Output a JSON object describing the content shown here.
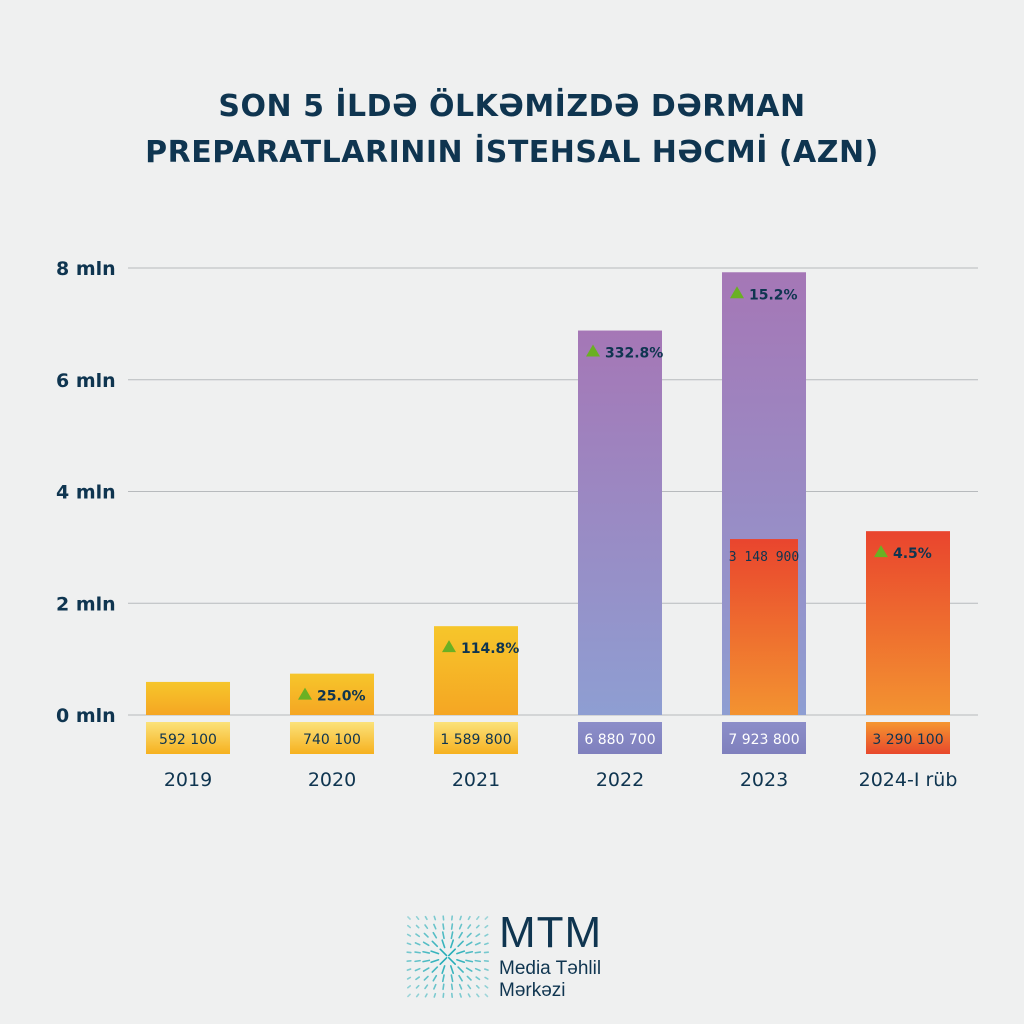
{
  "title": {
    "line1": "SON 5 İLDƏ ÖLKƏMİZDƏ DƏRMAN",
    "line2": "PREPARATLARININ İSTEHSAL HƏCMİ (AZN)"
  },
  "chart_data": {
    "type": "bar",
    "categories": [
      "2019",
      "2020",
      "2021",
      "2022",
      "2023",
      "2024-I rüb"
    ],
    "ylim": [
      0,
      8000000
    ],
    "yticks": [
      {
        "value": 0,
        "label": "0 mln"
      },
      {
        "value": 2000000,
        "label": "2 mln"
      },
      {
        "value": 4000000,
        "label": "4 mln"
      },
      {
        "value": 6000000,
        "label": "6 mln"
      },
      {
        "value": 8000000,
        "label": "8 mln"
      }
    ],
    "grid": true,
    "bars": [
      {
        "category": "2019",
        "value": 592100,
        "value_label": "592 100",
        "growth": null,
        "style": "yellow"
      },
      {
        "category": "2020",
        "value": 740100,
        "value_label": "740 100",
        "growth": "25.0%",
        "style": "yellow"
      },
      {
        "category": "2021",
        "value": 1589800,
        "value_label": "1 589 800",
        "growth": "114.8%",
        "style": "yellow"
      },
      {
        "category": "2022",
        "value": 6880700,
        "value_label": "6 880 700",
        "growth": "332.8%",
        "style": "purple"
      },
      {
        "category": "2023",
        "value": 7923800,
        "value_label": "7 923 800",
        "growth": "15.2%",
        "style": "purple",
        "inner": {
          "value": 3148900,
          "value_label": "3 148 900",
          "style": "orange"
        }
      },
      {
        "category": "2024-I rüb",
        "value": 3290100,
        "value_label": "3 290 100",
        "growth": "4.5%",
        "style": "orange"
      }
    ],
    "colors": {
      "yellow_top": "#f6c62b",
      "yellow_bottom": "#f5a623",
      "purple_top": "#a577b6",
      "purple_bottom": "#8e9ed2",
      "orange_top": "#e9452e",
      "orange_bottom": "#f39330",
      "growth_arrow": "#6ab023",
      "text": "#0f3550"
    }
  },
  "logo": {
    "name": "MTM",
    "line1": "Media Təhlil",
    "line2": "Mərkəzi",
    "color": "#16a9b4"
  }
}
